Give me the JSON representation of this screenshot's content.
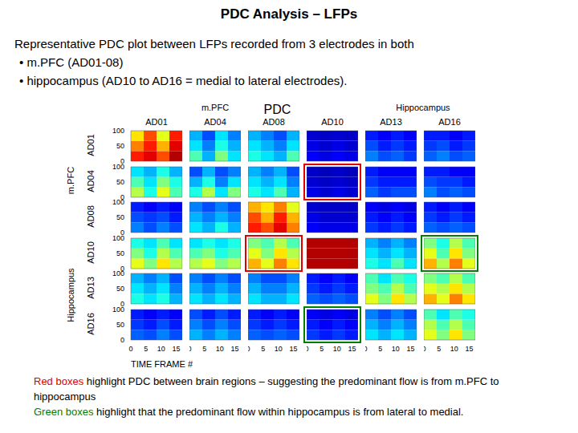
{
  "title": "PDC Analysis – LFPs",
  "description": [
    "Representative PDC plot between LFPs recorded from 3 electrodes in both",
    "• m.PFC (AD01-08)",
    "• hippocampus (AD10 to AD16 = medial to lateral electrodes)."
  ],
  "chart_data": {
    "type": "heatmap_grid",
    "title": "PDC",
    "groups": [
      {
        "label": "m.PFC",
        "electrodes": [
          "AD01",
          "AD04",
          "AD08"
        ]
      },
      {
        "label": "Hippocampus",
        "electrodes": [
          "AD10",
          "AD13",
          "AD16"
        ]
      }
    ],
    "x_label": "TIME FRAME #",
    "xlim": [
      0,
      17
    ],
    "xticks": [
      0,
      5,
      10,
      15
    ],
    "ylim": [
      0,
      100
    ],
    "yticks": [
      0,
      50,
      100
    ],
    "time_bins": [
      0,
      4.25,
      8.5,
      12.75,
      17
    ],
    "frequency_bins": [
      0,
      33.33,
      66.67,
      100
    ],
    "color_range": [
      0,
      1
    ],
    "cells": [
      [
        [
          [
            0.85,
            0.9,
            0.8,
            0.95
          ],
          [
            0.75,
            0.85,
            0.7,
            0.9
          ],
          [
            0.65,
            0.8,
            0.6,
            0.85
          ]
        ],
        [
          [
            0.45,
            0.3,
            0.5,
            0.35
          ],
          [
            0.35,
            0.25,
            0.4,
            0.3
          ],
          [
            0.3,
            0.2,
            0.35,
            0.25
          ]
        ],
        [
          [
            0.4,
            0.35,
            0.3,
            0.45
          ],
          [
            0.35,
            0.3,
            0.25,
            0.35
          ],
          [
            0.3,
            0.25,
            0.2,
            0.3
          ]
        ],
        [
          [
            0.12,
            0.1,
            0.12,
            0.1
          ],
          [
            0.1,
            0.08,
            0.1,
            0.08
          ],
          [
            0.08,
            0.07,
            0.08,
            0.07
          ]
        ],
        [
          [
            0.25,
            0.2,
            0.22,
            0.18
          ],
          [
            0.2,
            0.15,
            0.18,
            0.15
          ],
          [
            0.15,
            0.12,
            0.15,
            0.12
          ]
        ],
        [
          [
            0.22,
            0.25,
            0.2,
            0.22
          ],
          [
            0.18,
            0.2,
            0.15,
            0.18
          ],
          [
            0.15,
            0.15,
            0.12,
            0.15
          ]
        ]
      ],
      [
        [
          [
            0.55,
            0.4,
            0.6,
            0.45
          ],
          [
            0.45,
            0.35,
            0.5,
            0.4
          ],
          [
            0.35,
            0.3,
            0.4,
            0.3
          ]
        ],
        [
          [
            0.4,
            0.55,
            0.35,
            0.5
          ],
          [
            0.3,
            0.4,
            0.25,
            0.35
          ],
          [
            0.2,
            0.3,
            0.2,
            0.25
          ]
        ],
        [
          [
            0.4,
            0.35,
            0.45,
            0.3
          ],
          [
            0.35,
            0.3,
            0.35,
            0.25
          ],
          [
            0.3,
            0.25,
            0.3,
            0.2
          ]
        ],
        [
          [
            0.1,
            0.08,
            0.1,
            0.08
          ],
          [
            0.08,
            0.07,
            0.08,
            0.07
          ],
          [
            0.07,
            0.06,
            0.07,
            0.06
          ]
        ],
        [
          [
            0.22,
            0.18,
            0.2,
            0.2
          ],
          [
            0.18,
            0.15,
            0.15,
            0.15
          ],
          [
            0.15,
            0.12,
            0.12,
            0.12
          ]
        ],
        [
          [
            0.25,
            0.2,
            0.22,
            0.2
          ],
          [
            0.2,
            0.18,
            0.18,
            0.15
          ],
          [
            0.15,
            0.15,
            0.12,
            0.12
          ]
        ]
      ],
      [
        [
          [
            0.25,
            0.2,
            0.25,
            0.2
          ],
          [
            0.2,
            0.18,
            0.2,
            0.15
          ],
          [
            0.15,
            0.12,
            0.15,
            0.12
          ]
        ],
        [
          [
            0.35,
            0.3,
            0.4,
            0.3
          ],
          [
            0.3,
            0.25,
            0.3,
            0.25
          ],
          [
            0.25,
            0.2,
            0.25,
            0.2
          ]
        ],
        [
          [
            0.85,
            0.8,
            0.9,
            0.75
          ],
          [
            0.8,
            0.7,
            0.85,
            0.7
          ],
          [
            0.7,
            0.65,
            0.75,
            0.6
          ]
        ],
        [
          [
            0.12,
            0.1,
            0.1,
            0.1
          ],
          [
            0.1,
            0.08,
            0.08,
            0.08
          ],
          [
            0.08,
            0.07,
            0.07,
            0.07
          ]
        ],
        [
          [
            0.18,
            0.15,
            0.18,
            0.15
          ],
          [
            0.15,
            0.12,
            0.15,
            0.12
          ],
          [
            0.12,
            0.1,
            0.12,
            0.1
          ]
        ],
        [
          [
            0.22,
            0.2,
            0.22,
            0.2
          ],
          [
            0.18,
            0.15,
            0.18,
            0.15
          ],
          [
            0.15,
            0.12,
            0.15,
            0.12
          ]
        ]
      ],
      [
        [
          [
            0.6,
            0.5,
            0.65,
            0.55
          ],
          [
            0.5,
            0.4,
            0.55,
            0.45
          ],
          [
            0.4,
            0.35,
            0.45,
            0.35
          ]
        ],
        [
          [
            0.55,
            0.6,
            0.5,
            0.55
          ],
          [
            0.45,
            0.5,
            0.4,
            0.45
          ],
          [
            0.35,
            0.4,
            0.35,
            0.4
          ]
        ],
        [
          [
            0.7,
            0.6,
            0.75,
            0.65
          ],
          [
            0.6,
            0.5,
            0.65,
            0.55
          ],
          [
            0.5,
            0.45,
            0.55,
            0.45
          ]
        ],
        [
          [
            0.95,
            0.95,
            0.95,
            0.95
          ],
          [
            0.95,
            0.95,
            0.95,
            0.95
          ],
          [
            0.95,
            0.95,
            0.95,
            0.95
          ]
        ],
        [
          [
            0.4,
            0.35,
            0.45,
            0.35
          ],
          [
            0.35,
            0.3,
            0.35,
            0.3
          ],
          [
            0.3,
            0.25,
            0.3,
            0.25
          ]
        ],
        [
          [
            0.7,
            0.55,
            0.75,
            0.6
          ],
          [
            0.6,
            0.45,
            0.65,
            0.5
          ],
          [
            0.5,
            0.4,
            0.55,
            0.45
          ]
        ]
      ],
      [
        [
          [
            0.4,
            0.35,
            0.4,
            0.3
          ],
          [
            0.35,
            0.3,
            0.35,
            0.25
          ],
          [
            0.3,
            0.25,
            0.3,
            0.2
          ]
        ],
        [
          [
            0.35,
            0.3,
            0.35,
            0.3
          ],
          [
            0.3,
            0.25,
            0.3,
            0.25
          ],
          [
            0.25,
            0.2,
            0.25,
            0.2
          ]
        ],
        [
          [
            0.35,
            0.3,
            0.3,
            0.35
          ],
          [
            0.3,
            0.25,
            0.25,
            0.3
          ],
          [
            0.25,
            0.2,
            0.2,
            0.25
          ]
        ],
        [
          [
            0.22,
            0.2,
            0.22,
            0.2
          ],
          [
            0.18,
            0.15,
            0.18,
            0.15
          ],
          [
            0.15,
            0.12,
            0.15,
            0.12
          ]
        ],
        [
          [
            0.6,
            0.5,
            0.65,
            0.55
          ],
          [
            0.5,
            0.45,
            0.55,
            0.45
          ],
          [
            0.45,
            0.35,
            0.45,
            0.4
          ]
        ],
        [
          [
            0.7,
            0.6,
            0.75,
            0.65
          ],
          [
            0.6,
            0.55,
            0.65,
            0.55
          ],
          [
            0.5,
            0.45,
            0.55,
            0.45
          ]
        ]
      ],
      [
        [
          [
            0.22,
            0.2,
            0.25,
            0.2
          ],
          [
            0.18,
            0.15,
            0.2,
            0.15
          ],
          [
            0.15,
            0.12,
            0.15,
            0.12
          ]
        ],
        [
          [
            0.3,
            0.25,
            0.3,
            0.25
          ],
          [
            0.25,
            0.2,
            0.25,
            0.2
          ],
          [
            0.2,
            0.15,
            0.2,
            0.15
          ]
        ],
        [
          [
            0.22,
            0.2,
            0.22,
            0.2
          ],
          [
            0.18,
            0.15,
            0.18,
            0.15
          ],
          [
            0.15,
            0.12,
            0.15,
            0.12
          ]
        ],
        [
          [
            0.18,
            0.15,
            0.18,
            0.15
          ],
          [
            0.15,
            0.12,
            0.15,
            0.12
          ],
          [
            0.12,
            0.1,
            0.12,
            0.1
          ]
        ],
        [
          [
            0.35,
            0.3,
            0.35,
            0.3
          ],
          [
            0.3,
            0.25,
            0.3,
            0.25
          ],
          [
            0.25,
            0.2,
            0.25,
            0.2
          ]
        ],
        [
          [
            0.6,
            0.5,
            0.65,
            0.5
          ],
          [
            0.55,
            0.45,
            0.55,
            0.45
          ],
          [
            0.45,
            0.35,
            0.45,
            0.4
          ]
        ]
      ]
    ],
    "highlights": [
      {
        "row": "AD04",
        "column": "AD10",
        "color": "#e00000"
      },
      {
        "row": "AD10",
        "column": "AD08",
        "color": "#e00000"
      },
      {
        "row": "AD10",
        "column": "AD16",
        "color": "#008000"
      },
      {
        "row": "AD16",
        "column": "AD10",
        "color": "#008000"
      }
    ]
  },
  "notes": [
    {
      "lead": "Red boxes",
      "color": "#e00000",
      "text": "highlight PDC between brain regions – suggesting the predominant flow is from m.PFC to hippocampus"
    },
    {
      "lead": "Green boxes",
      "color": "#008000",
      "text": "highlight that the predominant flow within hippocampus is from lateral to medial."
    }
  ]
}
